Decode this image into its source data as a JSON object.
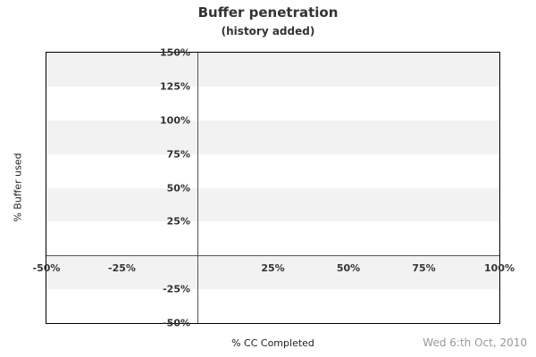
{
  "chart_data": {
    "type": "line",
    "title": "Buffer penetration",
    "subtitle": "(history added)",
    "xlabel": "% CC Completed",
    "ylabel": "% Buffer used",
    "footer_date": "Wed 6:th Oct, 2010",
    "xlim": [
      -50,
      100
    ],
    "ylim": [
      -50,
      150
    ],
    "x_ticks": [
      {
        "value": -50,
        "label": "-50%"
      },
      {
        "value": -25,
        "label": "-25%"
      },
      {
        "value": 25,
        "label": "25%"
      },
      {
        "value": 50,
        "label": "50%"
      },
      {
        "value": 75,
        "label": "75%"
      },
      {
        "value": 100,
        "label": "100%"
      }
    ],
    "y_ticks": [
      {
        "value": 150,
        "label": "150%"
      },
      {
        "value": 125,
        "label": "125%"
      },
      {
        "value": 100,
        "label": "100%"
      },
      {
        "value": 75,
        "label": "75%"
      },
      {
        "value": 50,
        "label": "50%"
      },
      {
        "value": 25,
        "label": "25%"
      },
      {
        "value": -25,
        "label": "-25%"
      },
      {
        "value": -50,
        "label": "-50%"
      }
    ],
    "zero_axis_x": 0,
    "zero_axis_y": 0,
    "bands": [
      [
        150,
        125
      ],
      [
        100,
        75
      ],
      [
        50,
        25
      ],
      [
        0,
        -25
      ]
    ],
    "series": [],
    "legend": "none",
    "grid": "alternating-horizontal-bands",
    "colors": {
      "band": "#f2f2f2",
      "plot_border": "#000000",
      "zero_line": "#555555",
      "tick_label": "#333333",
      "title": "#333333",
      "axis_title": "#222222",
      "date": "#999999"
    }
  }
}
